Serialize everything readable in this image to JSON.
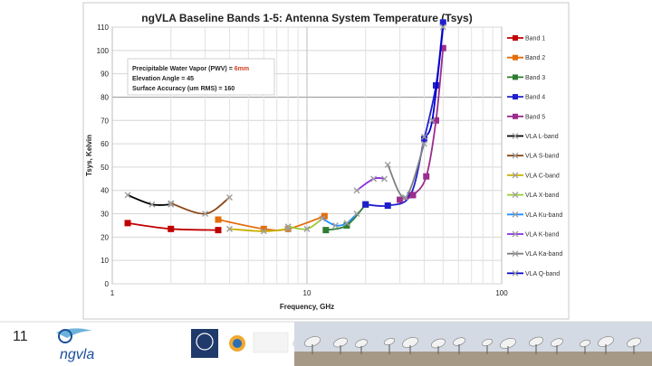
{
  "slide": {
    "number": "11",
    "logo_text": "ngvla",
    "colors": {
      "accent": "#1a4f9c"
    }
  },
  "chart_data": {
    "type": "line",
    "title": "ngVLA Baseline Bands 1-5:   Antenna System Temperature (Tsys)",
    "xlabel": "Frequency, GHz",
    "ylabel": "Tsys, Kelvin",
    "xscale": "log",
    "xlim": [
      1,
      100
    ],
    "ylim": [
      0,
      110
    ],
    "xticks": [
      "1",
      "10",
      "100"
    ],
    "yticks": [
      "0",
      "10",
      "20",
      "30",
      "40",
      "50",
      "60",
      "70",
      "80",
      "90",
      "100",
      "110"
    ],
    "info_box": {
      "line1_label": "Precipitable Water Vapor (PWV) =",
      "line1_value": "6mm",
      "line2": "Elevation Angle =  45",
      "line3": "Surface Accuracy (um RMS) =  160"
    },
    "series": [
      {
        "name": "Band 1",
        "color": "#c00000",
        "marker": "square",
        "x": [
          1.2,
          2.0,
          3.5
        ],
        "y": [
          26,
          23.5,
          23
        ]
      },
      {
        "name": "Band 2",
        "color": "#e46c0a",
        "marker": "square",
        "x": [
          3.5,
          6.0,
          8.0,
          12.3
        ],
        "y": [
          27.5,
          23.5,
          23.5,
          29
        ]
      },
      {
        "name": "Band 3",
        "color": "#2e7d32",
        "marker": "square",
        "x": [
          12.5,
          16.0,
          20.0
        ],
        "y": [
          23,
          25,
          34
        ]
      },
      {
        "name": "Band 4",
        "color": "#1f1fcc",
        "marker": "square",
        "x": [
          20.0,
          26.0,
          34.0,
          40.0,
          46.0,
          50.0
        ],
        "y": [
          34,
          33.5,
          38,
          62,
          85,
          112
        ]
      },
      {
        "name": "Band 5",
        "color": "#9b2d8e",
        "marker": "square",
        "x": [
          30.0,
          35.0,
          41.0,
          46.0,
          50.0
        ],
        "y": [
          36,
          38,
          46,
          70,
          101
        ]
      },
      {
        "name": "VLA L-band",
        "color": "#000000",
        "marker": "x",
        "x": [
          1.2,
          1.6,
          2.0
        ],
        "y": [
          38,
          34,
          34
        ]
      },
      {
        "name": "VLA S-band",
        "color": "#8b4513",
        "marker": "x",
        "x": [
          2.0,
          3.0,
          4.0
        ],
        "y": [
          34.5,
          30,
          37
        ]
      },
      {
        "name": "VLA C-band",
        "color": "#c9b000",
        "marker": "x",
        "x": [
          4.0,
          6.0,
          8.0
        ],
        "y": [
          23.5,
          22.5,
          23.5
        ]
      },
      {
        "name": "VLA X-band",
        "color": "#9acd32",
        "marker": "x",
        "x": [
          8.0,
          10.0,
          12.0
        ],
        "y": [
          24.5,
          23.5,
          28
        ]
      },
      {
        "name": "VLA Ku-band",
        "color": "#1e90ff",
        "marker": "x",
        "x": [
          12.0,
          14.0,
          16.0,
          18.0
        ],
        "y": [
          28,
          25,
          26,
          30
        ]
      },
      {
        "name": "VLA K-band",
        "color": "#8a2be2",
        "marker": "x",
        "x": [
          18.0,
          22.0,
          25.0
        ],
        "y": [
          40,
          45,
          45
        ]
      },
      {
        "name": "VLA Ka-band",
        "color": "#808080",
        "marker": "x",
        "x": [
          26.0,
          32.0,
          40.0
        ],
        "y": [
          51,
          37,
          60
        ]
      },
      {
        "name": "VLA Q-band",
        "color": "#0000cd",
        "marker": "x",
        "x": [
          40.0,
          44.0,
          50.0
        ],
        "y": [
          63,
          70,
          110
        ]
      }
    ]
  }
}
